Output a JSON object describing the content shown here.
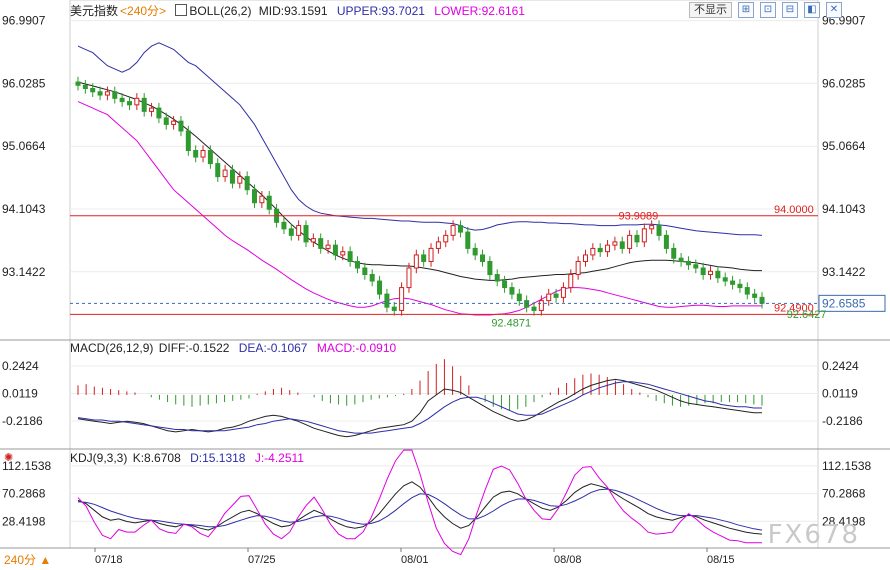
{
  "header": {
    "symbol": "美元指数",
    "period": "<240分>",
    "boll": "BOLL(26,2)",
    "mid": "MID:93.1591",
    "upper": "UPPER:93.7021",
    "lower": "LOWER:92.6161",
    "view_select": "不显示",
    "buttons": [
      "⊞",
      "⊡",
      "⊟",
      "◧",
      "✕"
    ]
  },
  "macd_legend": {
    "name": "MACD(26,12,9)",
    "diff": "DIFF:-0.1522",
    "dea": "DEA:-0.1067",
    "macd": "MACD:-0.0910"
  },
  "kdj_legend": {
    "name": "KDJ(9,3,3)",
    "k": "K:8.6708",
    "d": "D:15.1318",
    "j": "J:-4.2511"
  },
  "footer": {
    "period_badge": "240分 ▲",
    "watermark": "FX678"
  },
  "colors": {
    "boll_upper": "#2e2ea8",
    "boll_mid": "#222222",
    "boll_lower": "#e000e0",
    "up": "#2f9a2f",
    "down": "#d02020",
    "hline": "#e02020",
    "current": "#3a6ab0"
  },
  "chart_data": [
    {
      "type": "candlestick",
      "x_labels": [
        "07/18",
        "07/25",
        "08/01",
        "08/08",
        "08/15"
      ],
      "y_ticks": [
        96.9907,
        96.0285,
        95.0664,
        94.1043,
        93.1422
      ],
      "ylim": [
        92.25,
        97.0
      ],
      "horizontal_lines": [
        {
          "value": 94.0,
          "label": "94.0000"
        },
        {
          "value": 92.49,
          "label": "92.4900"
        }
      ],
      "current_price": "92.6585",
      "annotations": [
        {
          "x": 0.76,
          "y": 93.9089,
          "label": "93.9089"
        },
        {
          "x": 0.59,
          "y": 92.4871,
          "label": "92.4871"
        },
        {
          "x": 0.985,
          "y": 92.62,
          "label": "92.6427"
        }
      ],
      "closes": [
        96.0,
        95.95,
        95.9,
        95.85,
        95.9,
        95.8,
        95.75,
        95.7,
        95.8,
        95.6,
        95.65,
        95.5,
        95.4,
        95.45,
        95.3,
        95.0,
        94.9,
        95.0,
        94.8,
        94.6,
        94.7,
        94.5,
        94.6,
        94.4,
        94.2,
        94.3,
        94.1,
        93.9,
        93.8,
        93.7,
        93.85,
        93.6,
        93.65,
        93.5,
        93.55,
        93.4,
        93.45,
        93.3,
        93.2,
        93.1,
        93.0,
        92.8,
        92.6,
        92.55,
        92.9,
        93.2,
        93.4,
        93.3,
        93.5,
        93.6,
        93.7,
        93.85,
        93.75,
        93.5,
        93.4,
        93.3,
        93.1,
        93.0,
        92.9,
        92.8,
        92.7,
        92.6,
        92.55,
        92.7,
        92.8,
        92.75,
        92.9,
        93.1,
        93.3,
        93.4,
        93.5,
        93.45,
        93.55,
        93.6,
        93.5,
        93.7,
        93.6,
        93.8,
        93.85,
        93.7,
        93.5,
        93.35,
        93.3,
        93.25,
        93.2,
        93.1,
        93.15,
        93.05,
        93.0,
        92.95,
        92.9,
        92.8,
        92.75,
        92.66
      ],
      "boll_upper": [
        96.6,
        96.55,
        96.5,
        96.4,
        96.3,
        96.25,
        96.2,
        96.25,
        96.35,
        96.5,
        96.6,
        96.65,
        96.6,
        96.55,
        96.45,
        96.35,
        96.3,
        96.2,
        96.1,
        96.0,
        95.9,
        95.8,
        95.7,
        95.55,
        95.4,
        95.2,
        95.0,
        94.8,
        94.6,
        94.4,
        94.25,
        94.15,
        94.08,
        94.04,
        94.02,
        94.0,
        93.99,
        93.98,
        93.97,
        93.96,
        93.96,
        93.95,
        93.94,
        93.93,
        93.92,
        93.92,
        93.91,
        93.9,
        93.9,
        93.9,
        93.89,
        93.88,
        93.85,
        93.8,
        93.78,
        93.79,
        93.82,
        93.86,
        93.88,
        93.9,
        93.91,
        93.91,
        93.9,
        93.9,
        93.89,
        93.89,
        93.88,
        93.88,
        93.87,
        93.86,
        93.86,
        93.85,
        93.85,
        93.85,
        93.86,
        93.86,
        93.86,
        93.87,
        93.87,
        93.86,
        93.85,
        93.83,
        93.81,
        93.79,
        93.77,
        93.76,
        93.75,
        93.74,
        93.73,
        93.72,
        93.71,
        93.71,
        93.71,
        93.7
      ],
      "boll_mid": [
        96.05,
        96.02,
        95.99,
        95.96,
        95.93,
        95.9,
        95.86,
        95.82,
        95.78,
        95.73,
        95.68,
        95.62,
        95.55,
        95.48,
        95.4,
        95.31,
        95.22,
        95.12,
        95.02,
        94.92,
        94.82,
        94.72,
        94.62,
        94.52,
        94.42,
        94.32,
        94.21,
        94.1,
        93.98,
        93.87,
        93.77,
        93.68,
        93.6,
        93.53,
        93.46,
        93.4,
        93.35,
        93.31,
        93.28,
        93.26,
        93.25,
        93.25,
        93.24,
        93.24,
        93.23,
        93.23,
        93.22,
        93.2,
        93.18,
        93.16,
        93.13,
        93.1,
        93.07,
        93.05,
        93.03,
        93.02,
        93.01,
        93.01,
        93.02,
        93.03,
        93.05,
        93.06,
        93.07,
        93.08,
        93.09,
        93.1,
        93.1,
        93.11,
        93.12,
        93.13,
        93.15,
        93.17,
        93.19,
        93.22,
        93.25,
        93.28,
        93.3,
        93.31,
        93.32,
        93.32,
        93.32,
        93.31,
        93.3,
        93.29,
        93.28,
        93.26,
        93.24,
        93.22,
        93.21,
        93.2,
        93.18,
        93.17,
        93.16,
        93.16
      ],
      "boll_lower": [
        95.75,
        95.7,
        95.65,
        95.6,
        95.55,
        95.45,
        95.35,
        95.25,
        95.15,
        95.0,
        94.85,
        94.7,
        94.55,
        94.4,
        94.3,
        94.2,
        94.1,
        94.0,
        93.9,
        93.8,
        93.7,
        93.62,
        93.55,
        93.48,
        93.4,
        93.32,
        93.25,
        93.18,
        93.1,
        93.02,
        92.95,
        92.88,
        92.82,
        92.77,
        92.72,
        92.68,
        92.65,
        92.62,
        92.6,
        92.6,
        92.62,
        92.66,
        92.7,
        92.73,
        92.74,
        92.73,
        92.7,
        92.67,
        92.64,
        92.6,
        92.56,
        92.53,
        92.5,
        92.49,
        92.48,
        92.48,
        92.48,
        92.49,
        92.5,
        92.52,
        92.55,
        92.6,
        92.66,
        92.72,
        92.78,
        92.84,
        92.88,
        92.9,
        92.9,
        92.89,
        92.87,
        92.85,
        92.82,
        92.79,
        92.76,
        92.73,
        92.7,
        92.67,
        92.64,
        92.61,
        92.6,
        92.6,
        92.61,
        92.62,
        92.63,
        92.63,
        92.62,
        92.61,
        92.61,
        92.62,
        92.62,
        92.62,
        92.62,
        92.62
      ]
    },
    {
      "type": "macd",
      "y_ticks": [
        0.2424,
        0.0119,
        -0.2186
      ],
      "ylim": [
        -0.42,
        0.36
      ],
      "diff": [
        -0.2,
        -0.21,
        -0.22,
        -0.23,
        -0.24,
        -0.23,
        -0.22,
        -0.23,
        -0.24,
        -0.26,
        -0.28,
        -0.3,
        -0.31,
        -0.3,
        -0.29,
        -0.3,
        -0.31,
        -0.3,
        -0.28,
        -0.27,
        -0.25,
        -0.22,
        -0.2,
        -0.18,
        -0.17,
        -0.18,
        -0.2,
        -0.22,
        -0.25,
        -0.28,
        -0.3,
        -0.32,
        -0.34,
        -0.35,
        -0.34,
        -0.32,
        -0.3,
        -0.28,
        -0.27,
        -0.26,
        -0.25,
        -0.22,
        -0.15,
        -0.05,
        0.0,
        0.05,
        0.04,
        0.02,
        -0.02,
        -0.06,
        -0.1,
        -0.14,
        -0.17,
        -0.2,
        -0.22,
        -0.21,
        -0.18,
        -0.14,
        -0.1,
        -0.06,
        -0.03,
        0.01,
        0.05,
        0.08,
        0.1,
        0.12,
        0.13,
        0.12,
        0.1,
        0.08,
        0.06,
        0.04,
        0.01,
        -0.02,
        -0.05,
        -0.07,
        -0.08,
        -0.09,
        -0.1,
        -0.11,
        -0.12,
        -0.13,
        -0.14,
        -0.15,
        -0.15
      ],
      "dea": [
        -0.19,
        -0.2,
        -0.21,
        -0.21,
        -0.22,
        -0.22,
        -0.23,
        -0.24,
        -0.25,
        -0.26,
        -0.27,
        -0.28,
        -0.29,
        -0.29,
        -0.3,
        -0.3,
        -0.3,
        -0.3,
        -0.3,
        -0.29,
        -0.28,
        -0.27,
        -0.25,
        -0.24,
        -0.22,
        -0.21,
        -0.2,
        -0.21,
        -0.22,
        -0.24,
        -0.26,
        -0.28,
        -0.3,
        -0.31,
        -0.32,
        -0.32,
        -0.32,
        -0.31,
        -0.3,
        -0.29,
        -0.28,
        -0.27,
        -0.24,
        -0.2,
        -0.15,
        -0.1,
        -0.06,
        -0.03,
        -0.02,
        -0.02,
        -0.04,
        -0.07,
        -0.1,
        -0.13,
        -0.16,
        -0.17,
        -0.17,
        -0.16,
        -0.13,
        -0.1,
        -0.07,
        -0.04,
        0.0,
        0.03,
        0.06,
        0.08,
        0.1,
        0.11,
        0.11,
        0.1,
        0.09,
        0.07,
        0.05,
        0.03,
        0.01,
        -0.01,
        -0.03,
        -0.05,
        -0.06,
        -0.08,
        -0.09,
        -0.1,
        -0.1,
        -0.11,
        -0.11
      ],
      "macd": [
        0.08,
        0.09,
        0.07,
        0.06,
        0.05,
        0.04,
        0.03,
        0.02,
        0.0,
        -0.02,
        -0.04,
        -0.06,
        -0.08,
        -0.09,
        -0.1,
        -0.09,
        -0.08,
        -0.07,
        -0.06,
        -0.05,
        -0.04,
        -0.03,
        0.01,
        0.03,
        0.05,
        0.06,
        0.04,
        0.02,
        0.0,
        -0.02,
        -0.05,
        -0.07,
        -0.08,
        -0.09,
        -0.08,
        -0.06,
        -0.04,
        -0.03,
        -0.02,
        -0.01,
        0.01,
        0.05,
        0.12,
        0.2,
        0.26,
        0.3,
        0.24,
        0.16,
        0.08,
        0.0,
        -0.06,
        -0.1,
        -0.12,
        -0.13,
        -0.12,
        -0.1,
        -0.06,
        -0.02,
        0.02,
        0.06,
        0.1,
        0.14,
        0.17,
        0.18,
        0.17,
        0.15,
        0.12,
        0.09,
        0.05,
        0.02,
        -0.02,
        -0.05,
        -0.07,
        -0.09,
        -0.1,
        -0.09,
        -0.08,
        -0.07,
        -0.07,
        -0.06,
        -0.06,
        -0.06,
        -0.07,
        -0.08,
        -0.09
      ]
    },
    {
      "type": "kdj",
      "y_ticks": [
        112.1538,
        70.2868,
        28.4198
      ],
      "ylim": [
        -12,
        118
      ],
      "k": [
        60,
        55,
        45,
        35,
        30,
        32,
        28,
        26,
        28,
        30,
        25,
        22,
        20,
        24,
        22,
        18,
        15,
        20,
        28,
        35,
        42,
        45,
        40,
        32,
        25,
        20,
        22,
        30,
        38,
        45,
        40,
        32,
        25,
        20,
        18,
        20,
        28,
        40,
        55,
        70,
        82,
        88,
        80,
        65,
        48,
        35,
        25,
        18,
        22,
        35,
        50,
        65,
        72,
        74,
        70,
        62,
        55,
        48,
        45,
        50,
        60,
        72,
        80,
        85,
        82,
        78,
        70,
        62,
        55,
        48,
        40,
        35,
        32,
        30,
        34,
        38,
        35,
        30,
        26,
        22,
        18,
        15,
        12,
        10,
        9
      ],
      "d": [
        58,
        57,
        54,
        49,
        44,
        40,
        36,
        33,
        31,
        30,
        29,
        27,
        25,
        24,
        23,
        22,
        20,
        20,
        22,
        26,
        30,
        34,
        37,
        36,
        33,
        29,
        27,
        28,
        31,
        35,
        37,
        36,
        33,
        29,
        26,
        24,
        25,
        29,
        36,
        45,
        55,
        64,
        70,
        69,
        63,
        55,
        46,
        38,
        32,
        32,
        37,
        44,
        52,
        58,
        62,
        62,
        60,
        56,
        52,
        51,
        54,
        59,
        65,
        72,
        76,
        77,
        75,
        71,
        66,
        60,
        54,
        48,
        43,
        39,
        37,
        37,
        37,
        35,
        33,
        30,
        27,
        23,
        20,
        17,
        15
      ],
      "j": [
        64,
        51,
        27,
        7,
        2,
        16,
        12,
        12,
        22,
        30,
        17,
        12,
        10,
        24,
        20,
        10,
        5,
        20,
        40,
        53,
        66,
        67,
        46,
        24,
        9,
        2,
        12,
        34,
        52,
        65,
        46,
        24,
        9,
        2,
        2,
        12,
        34,
        62,
        93,
        120,
        136,
        136,
        100,
        57,
        18,
        -5,
        -17,
        -22,
        2,
        41,
        76,
        107,
        112,
        106,
        86,
        62,
        45,
        32,
        31,
        48,
        72,
        98,
        110,
        111,
        94,
        80,
        60,
        44,
        33,
        24,
        12,
        9,
        10,
        12,
        28,
        40,
        31,
        20,
        12,
        6,
        0,
        -1,
        -4,
        -4,
        -4
      ]
    }
  ]
}
